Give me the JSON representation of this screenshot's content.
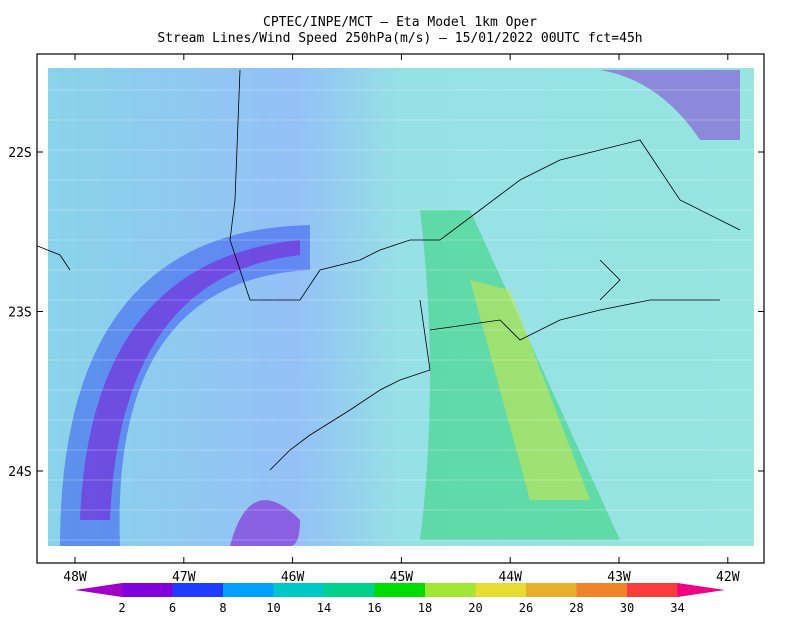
{
  "header": {
    "line1": "CPTEC/INPE/MCT —  Eta Model 1km Oper",
    "line2": "Stream Lines/Wind Speed 250hPa(m/s) — 15/01/2022 00UTC fct=45h"
  },
  "map": {
    "lon_ticks": [
      "48W",
      "47W",
      "46W",
      "45W",
      "44W",
      "43W",
      "42W"
    ],
    "lat_ticks": [
      "22S",
      "23S",
      "24S"
    ]
  },
  "colorbar": {
    "labels": [
      "2",
      "6",
      "8",
      "10",
      "14",
      "16",
      "18",
      "20",
      "26",
      "28",
      "30",
      "34"
    ],
    "colors": [
      "#a000c8",
      "#8200dc",
      "#1e3cff",
      "#00a0ff",
      "#00c8c8",
      "#00d28c",
      "#00dc00",
      "#a0e632",
      "#e6dc32",
      "#e6af2d",
      "#f08228",
      "#fa3c3c",
      "#f00082"
    ]
  }
}
